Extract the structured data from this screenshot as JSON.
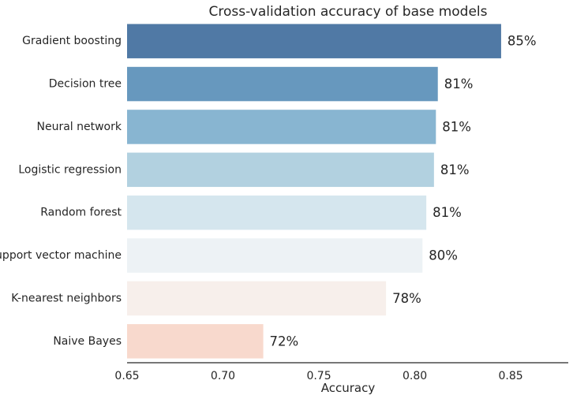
{
  "chart_data": {
    "type": "bar",
    "orientation": "horizontal",
    "title": "Cross-validation accuracy of base models",
    "xlabel": "Accuracy",
    "ylabel": "",
    "categories": [
      "Gradient boosting",
      "Decision tree",
      "Neural network",
      "Logistic regression",
      "Random forest",
      "Support vector machine",
      "K-nearest neighbors",
      "Naive Bayes"
    ],
    "values": [
      0.845,
      0.812,
      0.811,
      0.81,
      0.806,
      0.804,
      0.785,
      0.721
    ],
    "data_labels": [
      "85%",
      "81%",
      "81%",
      "81%",
      "81%",
      "80%",
      "78%",
      "72%"
    ],
    "colors": [
      "#5079a5",
      "#6798be",
      "#88b5d1",
      "#b2d1e0",
      "#d5e6ee",
      "#edf2f5",
      "#f7efeb",
      "#f8d9cd"
    ],
    "xlim": [
      0.65,
      0.88
    ],
    "xticks": [
      0.65,
      0.7,
      0.75,
      0.8,
      0.85
    ],
    "xtick_labels": [
      "0.65",
      "0.70",
      "0.75",
      "0.80",
      "0.85"
    ],
    "grid": false,
    "legend": "none"
  }
}
